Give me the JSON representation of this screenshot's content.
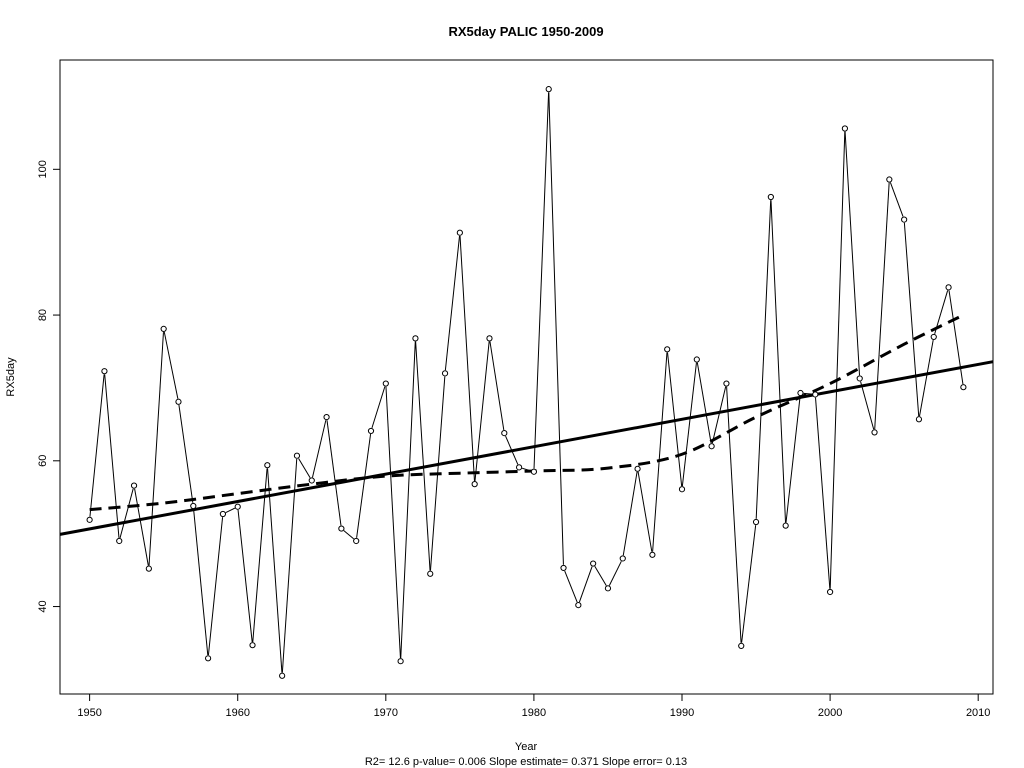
{
  "chart_data": {
    "type": "line",
    "title": "RX5day   PALIC 1950-2009",
    "xlabel": "Year",
    "ylabel": "RX5day",
    "subtitle": "R2= 12.6  p-value= 0.006  Slope estimate= 0.371  Slope error= 0.13",
    "xlim": [
      1948,
      2011
    ],
    "ylim": [
      28,
      115
    ],
    "x_ticks": [
      "1950",
      "1960",
      "1970",
      "1980",
      "1990",
      "2000",
      "2010"
    ],
    "y_ticks": [
      "40",
      "60",
      "80",
      "100"
    ],
    "grid": false,
    "series": [
      {
        "kind": "observed",
        "x": [
          1950,
          1951,
          1952,
          1953,
          1954,
          1955,
          1956,
          1957,
          1958,
          1959,
          1960,
          1961,
          1962,
          1963,
          1964,
          1965,
          1966,
          1967,
          1968,
          1969,
          1970,
          1971,
          1972,
          1973,
          1974,
          1975,
          1976,
          1977,
          1978,
          1979,
          1980,
          1981,
          1982,
          1983,
          1984,
          1985,
          1986,
          1987,
          1988,
          1989,
          1990,
          1991,
          1992,
          1993,
          1994,
          1995,
          1996,
          1997,
          1998,
          1999,
          2000,
          2001,
          2002,
          2003,
          2004,
          2005,
          2006,
          2007,
          2008,
          2009
        ],
        "values": [
          51.9,
          72.3,
          49.0,
          56.6,
          45.2,
          78.1,
          68.1,
          53.8,
          32.9,
          52.7,
          53.7,
          34.7,
          59.4,
          30.5,
          60.7,
          57.3,
          66.0,
          50.7,
          49.0,
          64.1,
          70.6,
          32.5,
          76.8,
          44.5,
          72.0,
          91.3,
          56.8,
          76.8,
          63.8,
          59.1,
          58.5,
          111.0,
          45.3,
          40.2,
          45.9,
          42.5,
          46.6,
          58.9,
          47.1,
          75.3,
          56.1,
          73.9,
          62.0,
          70.6,
          34.6,
          51.6,
          96.2,
          51.1,
          69.3,
          69.1,
          42.0,
          105.6,
          71.3,
          63.9,
          98.6,
          93.1,
          65.7,
          77.0,
          83.8,
          70.1
        ]
      },
      {
        "kind": "linear-fit",
        "x": [
          1948,
          2011
        ],
        "values": [
          49.9,
          73.6
        ]
      },
      {
        "kind": "smoothed",
        "x": [
          1950,
          1955,
          1960,
          1965,
          1970,
          1975,
          1980,
          1985,
          1990,
          1995,
          2000,
          2005,
          2009
        ],
        "values": [
          53.3,
          54.2,
          55.5,
          56.8,
          57.9,
          58.3,
          58.6,
          59.0,
          60.9,
          66.0,
          70.6,
          76.0,
          80.0
        ]
      }
    ]
  }
}
